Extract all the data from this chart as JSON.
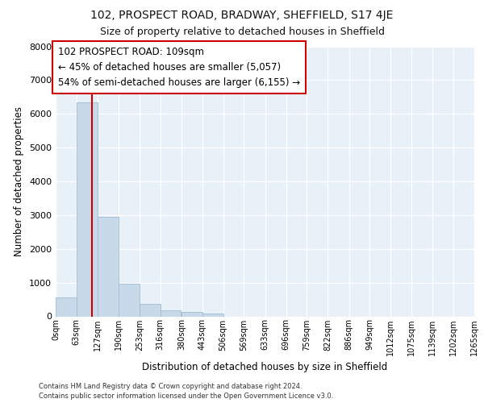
{
  "title": "102, PROSPECT ROAD, BRADWAY, SHEFFIELD, S17 4JE",
  "subtitle": "Size of property relative to detached houses in Sheffield",
  "xlabel": "Distribution of detached houses by size in Sheffield",
  "ylabel": "Number of detached properties",
  "bar_color": "#c8daea",
  "bar_edge_color": "#a0bcd0",
  "background_color": "#e8f0f8",
  "bin_labels": [
    "0sqm",
    "63sqm",
    "127sqm",
    "190sqm",
    "253sqm",
    "316sqm",
    "380sqm",
    "443sqm",
    "506sqm",
    "569sqm",
    "633sqm",
    "696sqm",
    "759sqm",
    "822sqm",
    "886sqm",
    "949sqm",
    "1012sqm",
    "1075sqm",
    "1139sqm",
    "1202sqm",
    "1265sqm"
  ],
  "bin_edges": [
    0,
    63,
    127,
    190,
    253,
    316,
    380,
    443,
    506,
    569,
    633,
    696,
    759,
    822,
    886,
    949,
    1012,
    1075,
    1139,
    1202,
    1265
  ],
  "bar_heights": [
    560,
    6350,
    2950,
    960,
    380,
    180,
    120,
    80,
    0,
    0,
    0,
    0,
    0,
    0,
    0,
    0,
    0,
    0,
    0,
    0
  ],
  "property_size": 109,
  "property_label": "102 PROSPECT ROAD: 109sqm",
  "annotation_line1": "← 45% of detached houses are smaller (5,057)",
  "annotation_line2": "54% of semi-detached houses are larger (6,155) →",
  "red_line_color": "#cc0000",
  "annotation_box_color": "#ffffff",
  "annotation_box_edge_color": "#cc0000",
  "ylim": [
    0,
    8000
  ],
  "yticks": [
    0,
    1000,
    2000,
    3000,
    4000,
    5000,
    6000,
    7000,
    8000
  ],
  "footer_line1": "Contains HM Land Registry data © Crown copyright and database right 2024.",
  "footer_line2": "Contains public sector information licensed under the Open Government Licence v3.0.",
  "grid_color": "#ffffff",
  "title_fontsize": 10,
  "subtitle_fontsize": 9
}
